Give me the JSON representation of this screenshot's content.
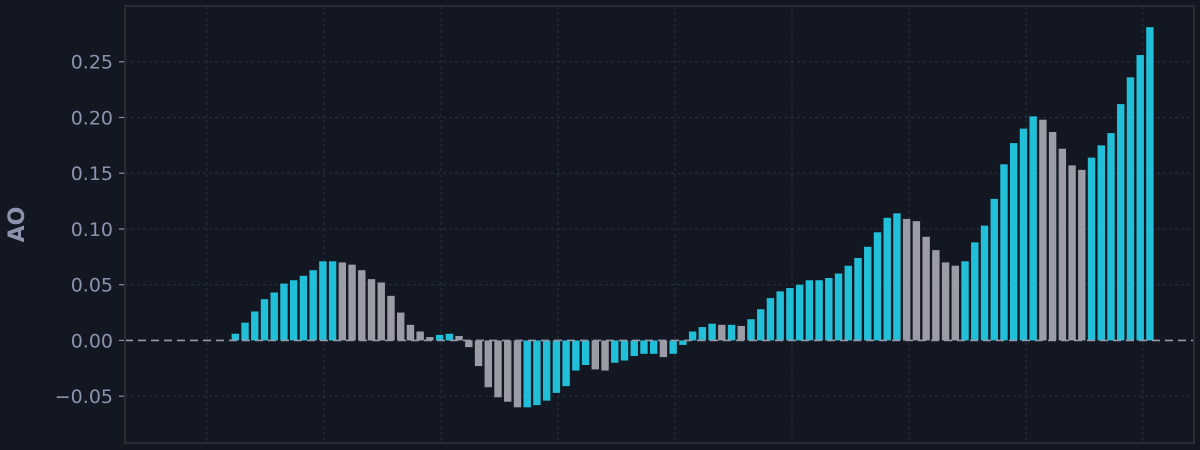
{
  "chart_data": {
    "type": "bar",
    "title": "",
    "xlabel": "",
    "ylabel": "AO",
    "ylim": [
      -0.092,
      0.3
    ],
    "yticks": [
      -0.05,
      0.0,
      0.05,
      0.1,
      0.15,
      0.2,
      0.25
    ],
    "ytick_labels": [
      "−0.05",
      "0.00",
      "0.05",
      "0.10",
      "0.15",
      "0.20",
      "0.25"
    ],
    "grid": true,
    "zero_line": true,
    "colors": {
      "background": "#131722",
      "frame": "#2a2c31",
      "grid": "#263042",
      "rising": "#22c0d8",
      "falling": "#9b9ca6",
      "zero_line": "#9599aa",
      "text": "#8c93ad"
    },
    "values": [
      0.0,
      0.0,
      0.0,
      0.0,
      0.0,
      0.0,
      0.0,
      0.0,
      0.0,
      0.0,
      0.006,
      0.016,
      0.026,
      0.037,
      0.043,
      0.051,
      0.054,
      0.058,
      0.063,
      0.071,
      0.071,
      0.07,
      0.068,
      0.063,
      0.055,
      0.052,
      0.04,
      0.025,
      0.014,
      0.008,
      0.003,
      0.005,
      0.006,
      0.004,
      -0.006,
      -0.023,
      -0.042,
      -0.051,
      -0.055,
      -0.06,
      -0.06,
      -0.058,
      -0.054,
      -0.047,
      -0.041,
      -0.027,
      -0.022,
      -0.026,
      -0.027,
      -0.02,
      -0.018,
      -0.014,
      -0.012,
      -0.012,
      -0.015,
      -0.012,
      -0.004,
      0.008,
      0.012,
      0.015,
      0.014,
      0.014,
      0.013,
      0.019,
      0.028,
      0.038,
      0.044,
      0.047,
      0.05,
      0.054,
      0.054,
      0.056,
      0.06,
      0.067,
      0.074,
      0.084,
      0.097,
      0.11,
      0.114,
      0.109,
      0.107,
      0.093,
      0.081,
      0.07,
      0.067,
      0.071,
      0.088,
      0.103,
      0.127,
      0.158,
      0.177,
      0.19,
      0.201,
      0.198,
      0.187,
      0.172,
      0.157,
      0.153,
      0.164,
      0.175,
      0.186,
      0.212,
      0.236,
      0.256,
      0.281
    ]
  }
}
